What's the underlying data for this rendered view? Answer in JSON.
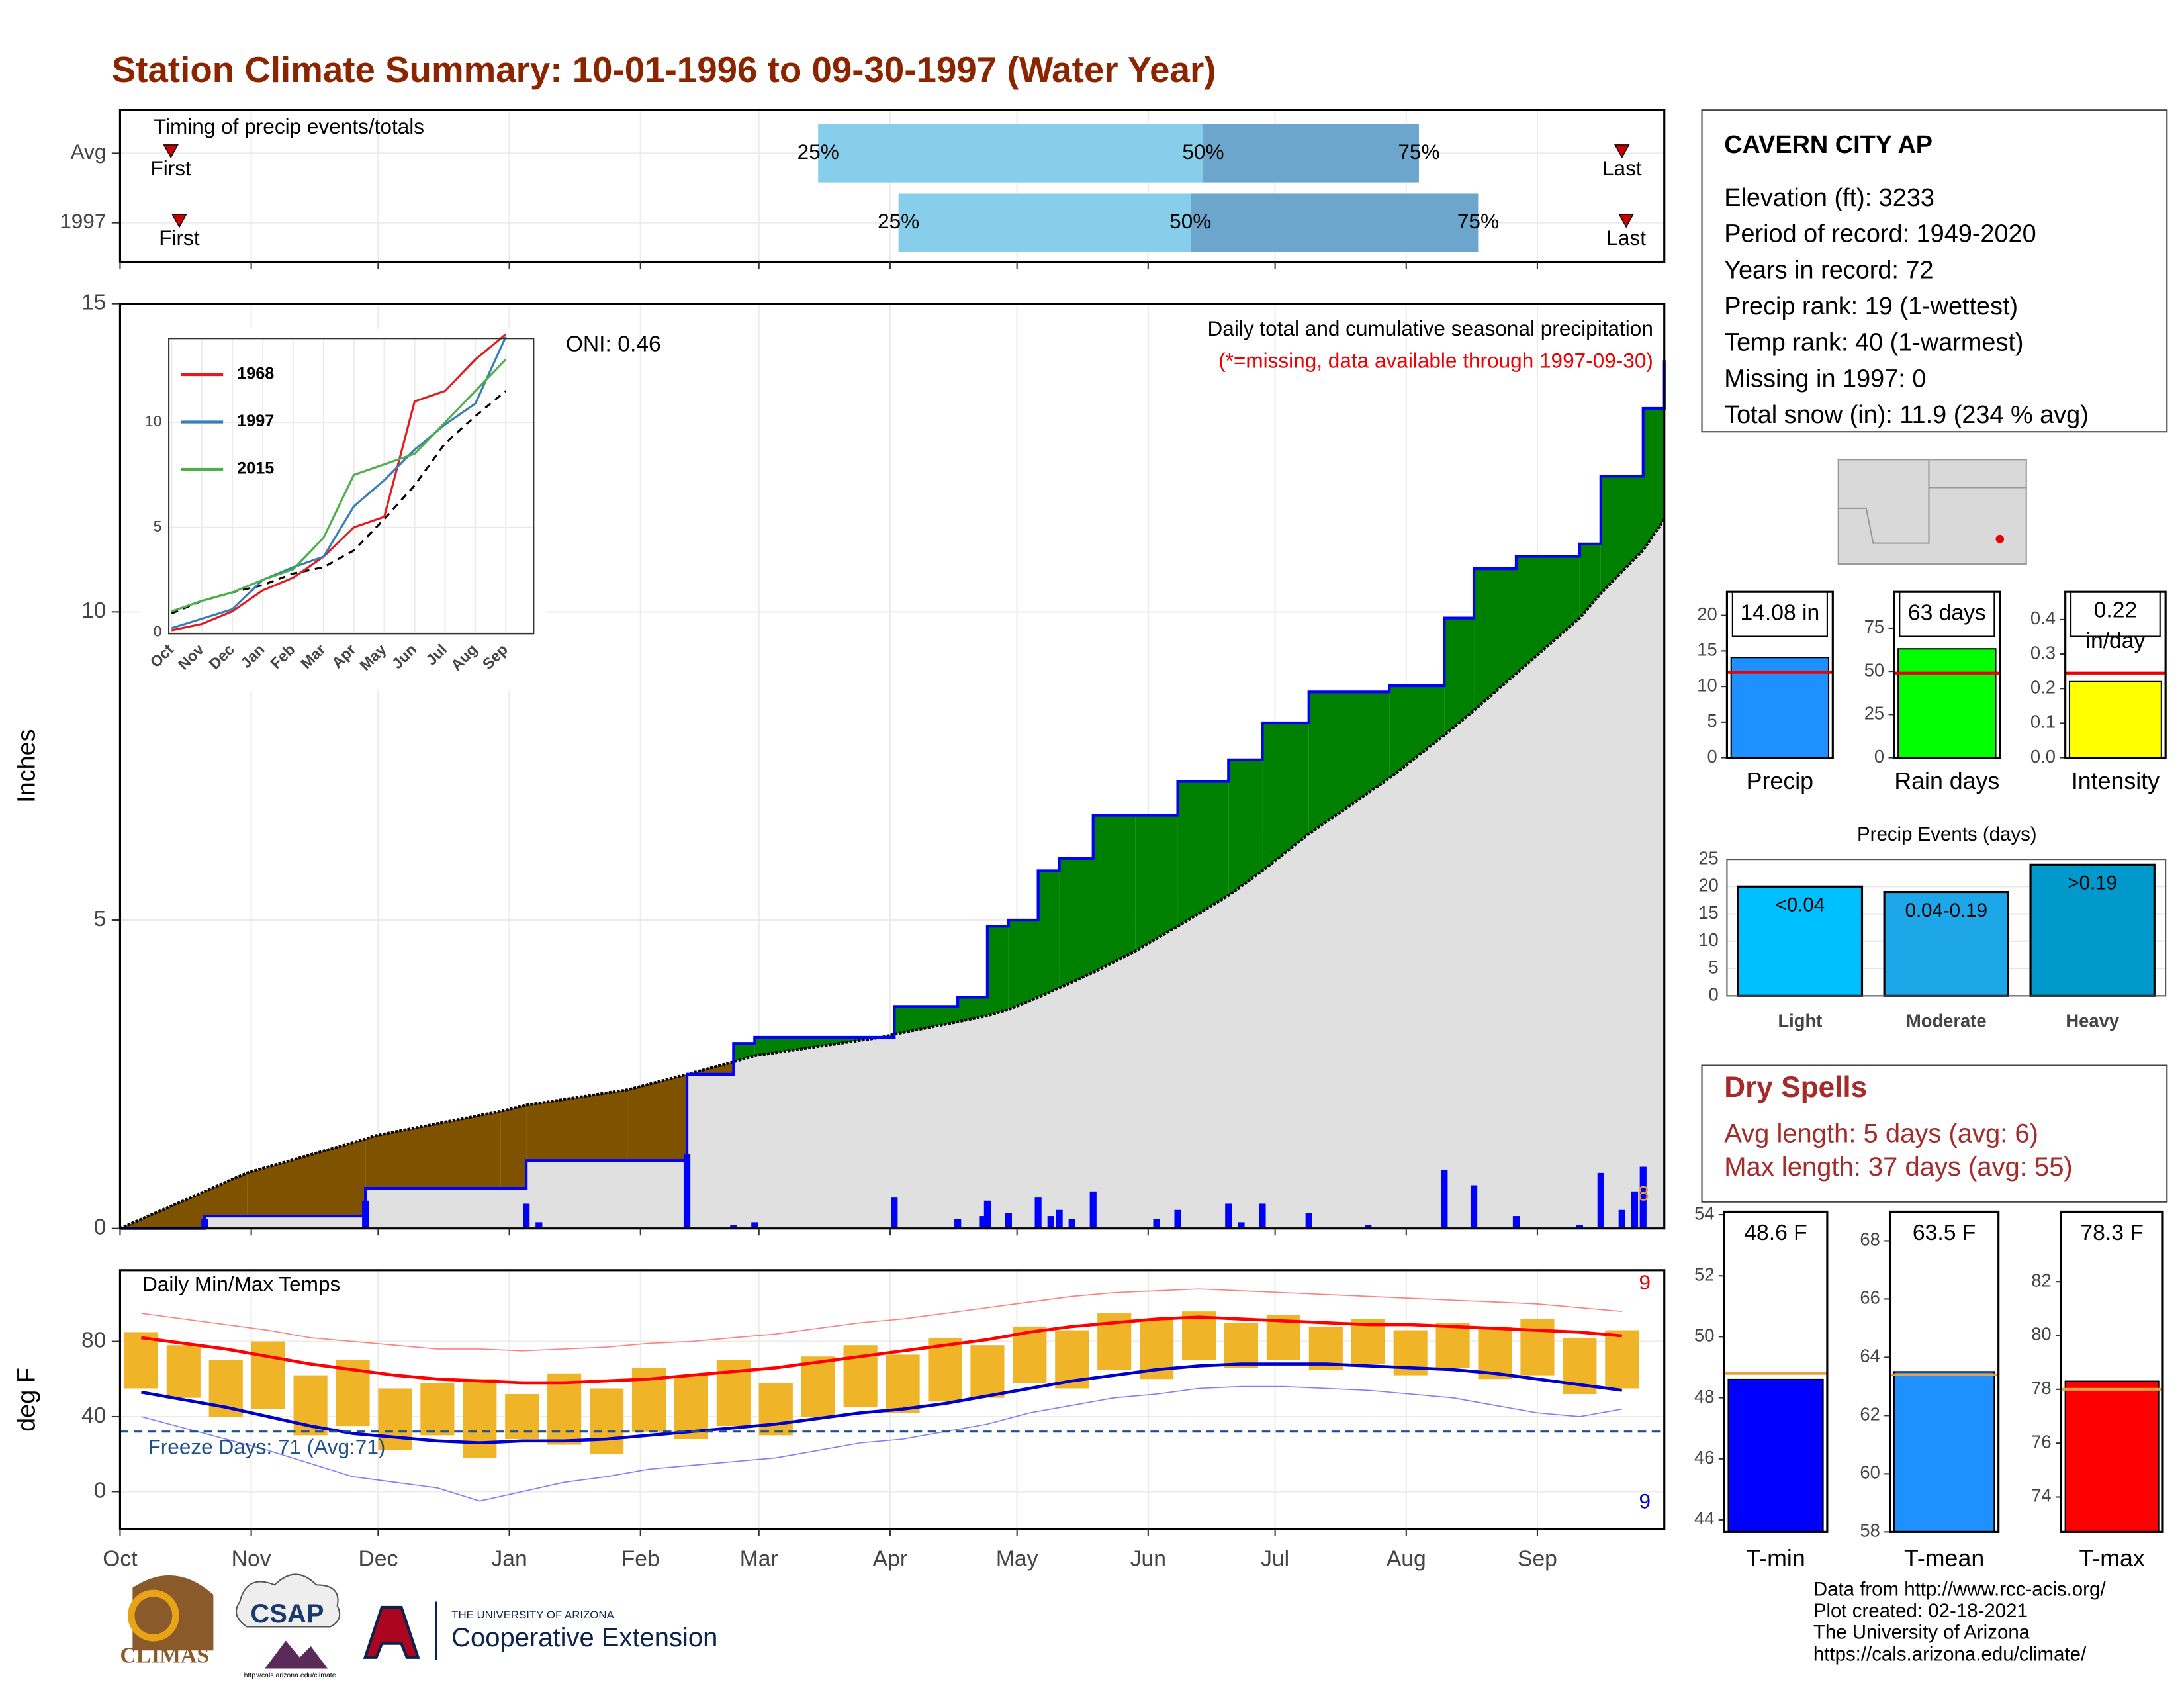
{
  "title": "Station Climate Summary: 10-01-1996 to 09-30-1997 (Water Year)",
  "chart_data": [
    {
      "type": "timing",
      "title": "Timing of precip events/totals",
      "categories": [
        "Avg",
        "1997"
      ],
      "series": [
        {
          "name": "First",
          "values": [
            12,
            14
          ]
        },
        {
          "name": "25%",
          "values": [
            165,
            184
          ]
        },
        {
          "name": "50%",
          "values": [
            256,
            253
          ]
        },
        {
          "name": "75%",
          "values": [
            307,
            321
          ]
        },
        {
          "name": "Last",
          "values": [
            355,
            356
          ]
        }
      ],
      "colors": {
        "early": "#87ceeb",
        "late": "#6ca6cd",
        "marker": "#cc0000"
      },
      "xlim": [
        0,
        365
      ]
    },
    {
      "type": "cumulative",
      "subtitle": "Daily total and cumulative seasonal precipitation",
      "note": "(*=missing, data available through 1997-09-30)",
      "oni": "ONI: 0.46",
      "count": 8,
      "ylabel": "Inches",
      "x": [
        0,
        20,
        30,
        58,
        60,
        90,
        96,
        120,
        134,
        145,
        150,
        180,
        183,
        198,
        205,
        210,
        217,
        222,
        230,
        240,
        250,
        262,
        270,
        281,
        300,
        313,
        320,
        330,
        345,
        350,
        360,
        365
      ],
      "series": [
        {
          "name": "1997",
          "color": "#0000ff",
          "values": [
            0,
            0.2,
            0.2,
            0.65,
            0.65,
            0.65,
            1.1,
            1.1,
            2.5,
            3.0,
            3.1,
            3.1,
            3.6,
            3.75,
            4.9,
            5.0,
            5.8,
            6.0,
            6.7,
            6.7,
            7.25,
            7.6,
            8.2,
            8.7,
            8.8,
            9.9,
            10.7,
            10.9,
            11.1,
            12.2,
            13.3,
            14.08
          ]
        },
        {
          "name": "Avg",
          "color": "#000000",
          "values": [
            0,
            0.6,
            0.9,
            1.45,
            1.5,
            1.9,
            2.0,
            2.25,
            2.5,
            2.7,
            2.8,
            3.1,
            3.15,
            3.35,
            3.45,
            3.55,
            3.75,
            3.9,
            4.15,
            4.5,
            4.9,
            5.4,
            5.8,
            6.4,
            7.3,
            8.0,
            8.4,
            9.0,
            9.9,
            10.3,
            11.0,
            11.5
          ]
        }
      ],
      "daily": {
        "color": "#0000ff",
        "x": [
          20,
          58,
          96,
          99,
          134,
          145,
          150,
          183,
          198,
          204,
          205,
          210,
          217,
          220,
          222,
          225,
          230,
          245,
          250,
          262,
          265,
          270,
          281,
          295,
          313,
          320,
          330,
          345,
          350,
          355,
          358,
          360
        ],
        "values": [
          0.15,
          0.45,
          0.4,
          0.1,
          1.2,
          0.05,
          0.1,
          0.5,
          0.15,
          0.2,
          0.45,
          0.25,
          0.5,
          0.2,
          0.3,
          0.15,
          0.6,
          0.15,
          0.3,
          0.4,
          0.1,
          0.4,
          0.25,
          0.05,
          0.95,
          0.7,
          0.2,
          0.05,
          0.9,
          0.3,
          0.6,
          1.0
        ]
      },
      "fills": {
        "above": "#008000",
        "below": "#7f5200",
        "base": "#e0e0e0"
      },
      "xlim": [
        0,
        365
      ],
      "ylim": [
        0,
        15
      ],
      "yticks": [
        0,
        5,
        10,
        15
      ]
    },
    {
      "type": "line",
      "categories": [
        "Oct",
        "Nov",
        "Dec",
        "Jan",
        "Feb",
        "Mar",
        "Apr",
        "May",
        "Jun",
        "Jul",
        "Aug",
        "Sep"
      ],
      "series": [
        {
          "name": "1968",
          "color": "#e41a1c",
          "values": [
            0.1,
            0.4,
            1.0,
            2.0,
            2.6,
            3.6,
            5.0,
            5.5,
            11.0,
            11.5,
            13.0,
            14.2
          ]
        },
        {
          "name": "1997",
          "color": "#377eb8",
          "values": [
            0.2,
            0.65,
            1.1,
            2.5,
            3.1,
            3.6,
            6.0,
            7.25,
            8.7,
            9.9,
            10.9,
            14.08
          ]
        },
        {
          "name": "2015",
          "color": "#4daf4a",
          "values": [
            1.0,
            1.5,
            1.9,
            2.5,
            3.0,
            4.5,
            7.5,
            8.0,
            8.5,
            10.0,
            11.5,
            13.0
          ]
        }
      ],
      "average": {
        "color": "#000000",
        "values": [
          0.9,
          1.5,
          1.9,
          2.25,
          2.8,
          3.1,
          3.9,
          5.4,
          7.0,
          9.0,
          10.3,
          11.5
        ]
      },
      "ylim": [
        0,
        14
      ],
      "yticks": [
        0,
        5,
        10
      ]
    },
    {
      "type": "temperature",
      "title": "Daily Min/Max Temps",
      "ylabel": "deg F",
      "x": [
        5,
        15,
        25,
        35,
        45,
        55,
        65,
        75,
        85,
        95,
        105,
        115,
        125,
        135,
        145,
        155,
        165,
        175,
        185,
        195,
        205,
        215,
        225,
        235,
        245,
        255,
        265,
        275,
        285,
        295,
        305,
        315,
        325,
        335,
        345,
        355
      ],
      "avg_max": {
        "color": "#ff0000",
        "values": [
          82,
          79,
          76,
          72,
          68,
          65,
          62,
          60,
          59,
          58,
          58,
          59,
          60,
          62,
          64,
          66,
          69,
          72,
          75,
          78,
          81,
          85,
          88,
          90,
          92,
          93,
          92,
          91,
          90,
          89,
          89,
          88,
          87,
          86,
          85,
          83
        ]
      },
      "avg_min": {
        "color": "#0000cd",
        "values": [
          53,
          49,
          45,
          40,
          35,
          31,
          29,
          27,
          26,
          27,
          27,
          28,
          30,
          32,
          34,
          36,
          39,
          42,
          44,
          47,
          51,
          55,
          59,
          62,
          65,
          67,
          68,
          68,
          68,
          67,
          66,
          65,
          63,
          60,
          57,
          54
        ]
      },
      "record_max": {
        "color": "#ff8080",
        "values": [
          95,
          92,
          89,
          86,
          82,
          80,
          78,
          76,
          76,
          75,
          76,
          77,
          79,
          80,
          82,
          84,
          87,
          90,
          92,
          95,
          98,
          101,
          104,
          106,
          107,
          108,
          107,
          106,
          105,
          104,
          103,
          102,
          101,
          100,
          98,
          96
        ]
      },
      "record_min": {
        "color": "#8080ff",
        "values": [
          40,
          34,
          28,
          22,
          15,
          8,
          5,
          2,
          -5,
          0,
          5,
          8,
          12,
          14,
          16,
          18,
          22,
          26,
          28,
          32,
          36,
          42,
          46,
          50,
          52,
          55,
          56,
          56,
          55,
          54,
          52,
          50,
          46,
          42,
          40,
          44
        ]
      },
      "obs_max": [
        85,
        78,
        70,
        80,
        62,
        70,
        55,
        58,
        60,
        52,
        63,
        55,
        66,
        62,
        70,
        58,
        72,
        78,
        73,
        82,
        78,
        88,
        86,
        95,
        92,
        96,
        90,
        94,
        88,
        92,
        86,
        90,
        88,
        92,
        82,
        86
      ],
      "obs_min": [
        55,
        50,
        40,
        44,
        30,
        35,
        22,
        30,
        18,
        28,
        25,
        20,
        32,
        28,
        35,
        30,
        40,
        45,
        42,
        48,
        50,
        58,
        55,
        65,
        60,
        70,
        66,
        70,
        65,
        68,
        62,
        66,
        60,
        62,
        52,
        55
      ],
      "bar_color": "#f0b429",
      "freeze": {
        "value": 32,
        "label": "Freeze Days: 71 (Avg:71)",
        "color": "#1f4e8c"
      },
      "record_high_count": 9,
      "record_low_count": 9,
      "xlim": [
        0,
        365
      ],
      "ylim": [
        -20,
        118
      ],
      "yticks": [
        0,
        40,
        80
      ],
      "xticks": [
        {
          "value": 0,
          "label": "Oct"
        },
        {
          "value": 31,
          "label": "Nov"
        },
        {
          "value": 61,
          "label": "Dec"
        },
        {
          "value": 92,
          "label": "Jan"
        },
        {
          "value": 123,
          "label": "Feb"
        },
        {
          "value": 151,
          "label": "Mar"
        },
        {
          "value": 182,
          "label": "Apr"
        },
        {
          "value": 212,
          "label": "May"
        },
        {
          "value": 243,
          "label": "Jun"
        },
        {
          "value": 273,
          "label": "Jul"
        },
        {
          "value": 304,
          "label": "Aug"
        },
        {
          "value": 335,
          "label": "Sep"
        }
      ]
    },
    {
      "type": "bar",
      "categories": [
        "Precip"
      ],
      "values": [
        14.08
      ],
      "value_labels": [
        "14.08 in"
      ],
      "average": 12,
      "color": "#1e90ff",
      "ylim": [
        0,
        23.3
      ],
      "yticks": [
        0,
        5,
        10,
        15,
        20
      ]
    },
    {
      "type": "bar",
      "categories": [
        "Rain days"
      ],
      "values": [
        63
      ],
      "value_labels": [
        "63 days"
      ],
      "average": 49,
      "color": "#00ff00",
      "ylim": [
        0,
        96
      ],
      "yticks": [
        0,
        25,
        50,
        75
      ]
    },
    {
      "type": "bar",
      "categories": [
        "Intensity"
      ],
      "values": [
        0.22
      ],
      "value_labels": [
        "0.22 in/day"
      ],
      "average": 0.245,
      "color": "#ffff00",
      "ylim": [
        0,
        0.48
      ],
      "yticks": [
        {
          "value": 0,
          "label": "0.0"
        },
        {
          "value": 0.1,
          "label": "0.1"
        },
        {
          "value": 0.2,
          "label": "0.2"
        },
        {
          "value": 0.3,
          "label": "0.3"
        },
        {
          "value": 0.4,
          "label": "0.4"
        }
      ]
    },
    {
      "type": "events",
      "title": "Precip Events (days)",
      "categories": [
        "Light",
        "Moderate",
        "Heavy"
      ],
      "values": [
        20,
        19,
        24
      ],
      "value_labels": [
        "<0.04",
        "0.04-0.19",
        ">0.19"
      ],
      "colors": [
        "#00bfff",
        "#1ea7e8",
        "#0099cc"
      ],
      "ylim": [
        0,
        25.5
      ],
      "yticks": [
        0,
        5,
        10,
        15,
        20,
        25
      ]
    },
    {
      "type": "tbar",
      "categories": [
        "T-min"
      ],
      "values": [
        48.6
      ],
      "value_labels": [
        "48.6 F"
      ],
      "average": 48.8,
      "color": "#0000ff",
      "ylim": [
        43.6,
        54.1
      ],
      "yticks": [
        44,
        46,
        48,
        50,
        52,
        54
      ]
    },
    {
      "type": "tbar",
      "categories": [
        "T-mean"
      ],
      "values": [
        63.5
      ],
      "value_labels": [
        "63.5 F"
      ],
      "average": 63.4,
      "color": "#1e90ff",
      "ylim": [
        58,
        69
      ],
      "yticks": [
        58,
        60,
        62,
        64,
        66,
        68
      ]
    },
    {
      "type": "tbar",
      "categories": [
        "T-max"
      ],
      "values": [
        78.3
      ],
      "value_labels": [
        "78.3 F"
      ],
      "average": 78.0,
      "color": "#ff0000",
      "ylim": [
        72.7,
        84.6
      ],
      "yticks": [
        74,
        76,
        78,
        80,
        82
      ]
    }
  ],
  "station": {
    "name": "CAVERN CITY AP",
    "lines": [
      "Elevation (ft): 3233",
      "Period of record: 1949-2020",
      "Years in record: 72",
      "Precip rank: 19 (1-wettest)",
      "Temp rank: 40 (1-warmest)",
      "Missing in 1997: 0",
      "Total snow (in): 11.9 (234 % avg)"
    ]
  },
  "dry_spells": {
    "title": "Dry Spells",
    "lines": [
      "Avg length: 5 days (avg: 6)",
      "Max length: 37 days (avg: 55)"
    ]
  },
  "footer": {
    "lines": [
      "Data from http://www.rcc-acis.org/",
      "Plot created: 02-18-2021",
      "The University of Arizona",
      "https://cals.arizona.edu/climate/"
    ]
  },
  "logos": {
    "climas": "CLIMAS",
    "csap": "CSAP",
    "csap_url": "http://cals.arizona.edu/climate",
    "ua_small": "THE UNIVERSITY OF ARIZONA",
    "ua_big": "Cooperative Extension"
  }
}
